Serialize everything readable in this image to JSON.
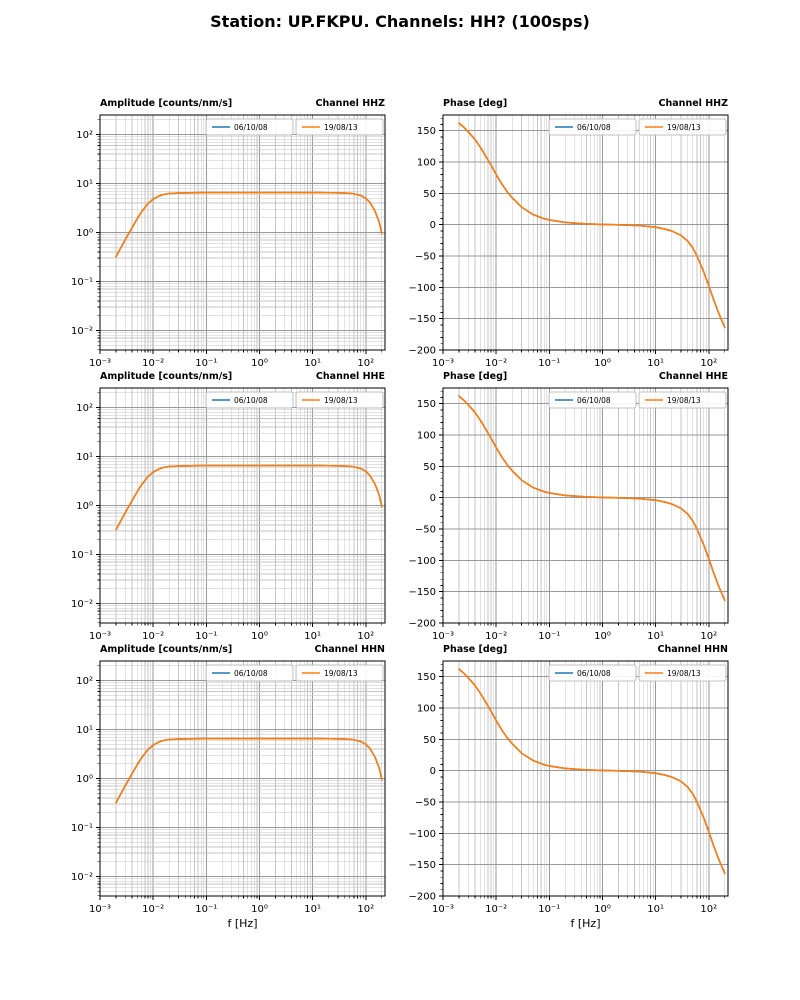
{
  "title": "Station: UP.FKPU. Channels: HH? (100sps)",
  "colors": {
    "background": "#ffffff",
    "grid_major": "#999999",
    "grid_minor": "#c6c6c6",
    "axis": "#000000",
    "legend_edge": "#b0b0b0",
    "series_blue": "#1f77b4",
    "series_orange": "#ff7f0e"
  },
  "chart_data": {
    "type": "line",
    "layout": "3 rows x 2 cols; rows = channels HHZ, HHE, HHN; left col = amplitude (log-log), right col = phase (semilog-x)",
    "grid": "major and minor gridlines on",
    "legend_position": "upper center-right inside axes",
    "xlabel": "f [Hz]",
    "xlim": [
      0.001,
      230
    ],
    "x_tick_exponents": [
      -3,
      -2,
      -1,
      0,
      1,
      2
    ],
    "amplitude_ylim": [
      0.00398,
      251
    ],
    "amplitude_tick_exponents": [
      -2,
      -1,
      0,
      1,
      2
    ],
    "phase_ylim": [
      -200,
      175
    ],
    "phase_yticks": [
      -200,
      -150,
      -100,
      -50,
      0,
      50,
      100,
      150
    ],
    "series": [
      {
        "name": "06/10/08",
        "color": "#1f77b4"
      },
      {
        "name": "19/08/13",
        "color": "#ff7f0e"
      }
    ],
    "note": "Both dated response curves overlap exactly in every panel; all three channels show identical responses",
    "frequencies_hz": [
      0.002,
      0.0025,
      0.003,
      0.004,
      0.005,
      0.006,
      0.008,
      0.01,
      0.013,
      0.016,
      0.02,
      0.03,
      0.05,
      0.08,
      0.1,
      0.2,
      0.5,
      1,
      2,
      5,
      10,
      15,
      20,
      30,
      40,
      50,
      60,
      80,
      100,
      120,
      150,
      180,
      200
    ],
    "amplitude": [
      0.32,
      0.5,
      0.72,
      1.25,
      1.9,
      2.6,
      3.9,
      4.8,
      5.6,
      6.0,
      6.25,
      6.4,
      6.45,
      6.5,
      6.5,
      6.5,
      6.5,
      6.5,
      6.5,
      6.5,
      6.5,
      6.5,
      6.48,
      6.45,
      6.4,
      6.3,
      6.15,
      5.7,
      5.0,
      4.1,
      2.7,
      1.6,
      0.95
    ],
    "phase": [
      162,
      155,
      148,
      136,
      124,
      113,
      95,
      80,
      64,
      53,
      43,
      28,
      16,
      9.5,
      7.5,
      3.5,
      1.2,
      0.3,
      -0.3,
      -1.5,
      -4,
      -7,
      -10,
      -17,
      -26,
      -37,
      -50,
      -75,
      -97,
      -117,
      -139,
      -155,
      -164
    ],
    "panels": [
      {
        "kind": "amplitude",
        "channel": "HHZ",
        "title_left": "Amplitude [counts/nm/s]",
        "title_right": "Channel HHZ"
      },
      {
        "kind": "phase",
        "channel": "HHZ",
        "title_left": "Phase [deg]",
        "title_right": "Channel HHZ"
      },
      {
        "kind": "amplitude",
        "channel": "HHE",
        "title_left": "Amplitude [counts/nm/s]",
        "title_right": "Channel HHE"
      },
      {
        "kind": "phase",
        "channel": "HHE",
        "title_left": "Phase [deg]",
        "title_right": "Channel HHE"
      },
      {
        "kind": "amplitude",
        "channel": "HHN",
        "title_left": "Amplitude [counts/nm/s]",
        "title_right": "Channel HHN"
      },
      {
        "kind": "phase",
        "channel": "HHN",
        "title_left": "Phase [deg]",
        "title_right": "Channel HHN"
      }
    ]
  }
}
